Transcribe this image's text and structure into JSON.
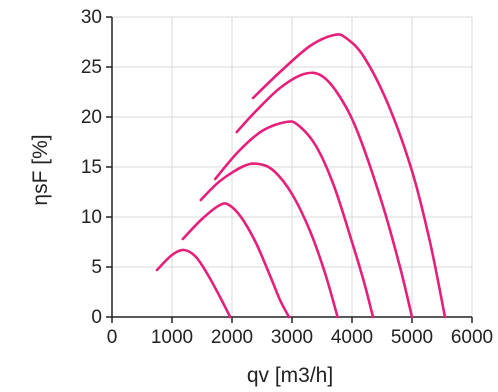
{
  "colors": {
    "series": "#e6207a",
    "axis": "#222222",
    "grid": "#d9d9d9",
    "background": "#ffffff"
  },
  "chart_data": {
    "type": "line",
    "title": "",
    "xlabel": "qv [m3/h]",
    "ylabel": "ηsF [%]",
    "xlim": [
      0,
      6000
    ],
    "ylim": [
      0,
      30
    ],
    "xticks": [
      0,
      1000,
      2000,
      3000,
      4000,
      5000,
      6000
    ],
    "yticks": [
      0,
      5,
      10,
      15,
      20,
      25,
      30
    ],
    "xtick_labels": [
      "0",
      "1000",
      "2000",
      "3000",
      "4000",
      "5000",
      "6000"
    ],
    "ytick_labels": [
      "0",
      "5",
      "10",
      "15",
      "20",
      "25",
      "30"
    ],
    "grid": true,
    "legend": "none",
    "series": [
      {
        "x": [
          750,
          1000,
          1200,
          1400,
          1600,
          1800,
          1970
        ],
        "y": [
          4.7,
          6.2,
          6.7,
          6.0,
          4.2,
          2.0,
          0
        ]
      },
      {
        "x": [
          1180,
          1500,
          1800,
          1950,
          2150,
          2400,
          2650,
          2800,
          2950
        ],
        "y": [
          7.8,
          9.8,
          11.2,
          11.2,
          10.0,
          7.4,
          3.9,
          1.7,
          0
        ]
      },
      {
        "x": [
          1480,
          1800,
          2200,
          2450,
          2700,
          3000,
          3300,
          3550,
          3760
        ],
        "y": [
          11.7,
          13.6,
          15.1,
          15.3,
          14.6,
          12.3,
          8.6,
          4.4,
          0
        ]
      },
      {
        "x": [
          1720,
          2100,
          2500,
          2900,
          3100,
          3400,
          3700,
          4000,
          4200,
          4350
        ],
        "y": [
          13.8,
          16.5,
          18.6,
          19.5,
          19.2,
          17.1,
          13.1,
          7.5,
          3.5,
          0
        ]
      },
      {
        "x": [
          2080,
          2400,
          2800,
          3200,
          3500,
          3800,
          4100,
          4500,
          4800,
          5000
        ],
        "y": [
          18.5,
          20.6,
          22.9,
          24.3,
          24.1,
          22.0,
          18.4,
          11.4,
          5.0,
          0
        ]
      },
      {
        "x": [
          2350,
          2800,
          3300,
          3700,
          3900,
          4200,
          4600,
          5000,
          5300,
          5550
        ],
        "y": [
          21.9,
          24.5,
          27.1,
          28.2,
          27.9,
          26.0,
          21.3,
          14.6,
          7.5,
          0
        ]
      }
    ]
  }
}
